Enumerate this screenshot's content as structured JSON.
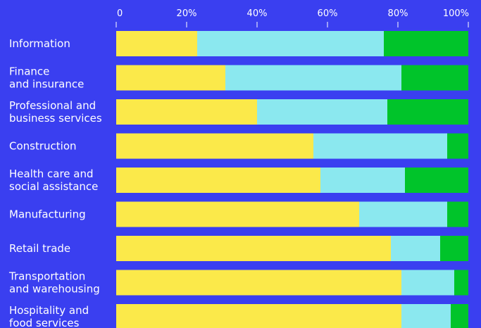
{
  "chart_data": {
    "type": "bar",
    "orientation": "horizontal",
    "stacked": true,
    "percent_stacked": true,
    "title": "",
    "xlabel": "",
    "ylabel": "",
    "xlim": [
      0,
      100
    ],
    "grid": false,
    "legend": "none",
    "x_ticks": [
      "0",
      "20%",
      "40%",
      "60%",
      "80%",
      "100%"
    ],
    "categories": [
      [
        "Information"
      ],
      [
        "Finance",
        "and insurance"
      ],
      [
        "Professional and",
        "business services"
      ],
      [
        "Construction"
      ],
      [
        "Health care and",
        "social assistance"
      ],
      [
        "Manufacturing"
      ],
      [
        "Retail trade"
      ],
      [
        "Transportation",
        "and warehousing"
      ],
      [
        "Hospitality and",
        "food services"
      ]
    ],
    "series": [
      {
        "color": "#fbe94a",
        "values": [
          23,
          31,
          40,
          56,
          58,
          69,
          78,
          81,
          81
        ]
      },
      {
        "color": "#8be8ef",
        "values": [
          53,
          50,
          37,
          38,
          24,
          25,
          14,
          15,
          14
        ]
      },
      {
        "color": "#00c42a",
        "values": [
          24,
          19,
          23,
          6,
          18,
          6,
          8,
          4,
          5
        ]
      }
    ],
    "colors": {
      "background": "#3a3ff0",
      "text": "#ffffff"
    }
  }
}
